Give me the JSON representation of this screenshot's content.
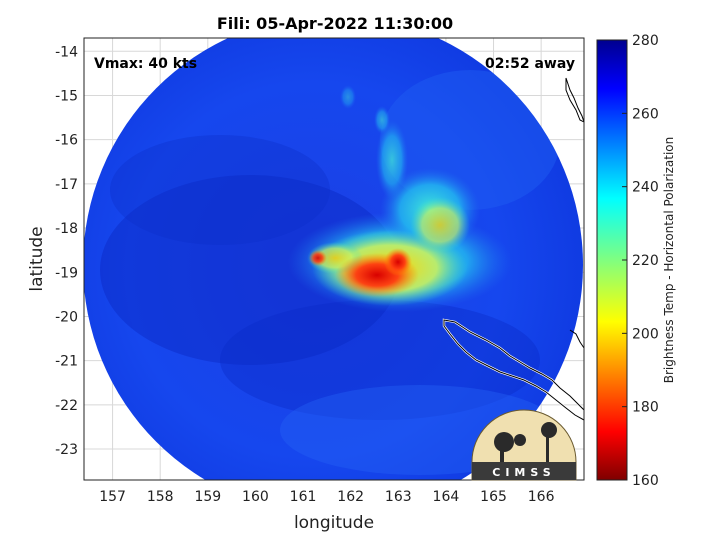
{
  "title": "Fili: 05-Apr-2022 11:30:00",
  "vmax_label": "Vmax: 40 kts",
  "away_label": "02:52 away",
  "xlabel": "longitude",
  "ylabel": "latitude",
  "x_ticks": [
    "157",
    "158",
    "159",
    "160",
    "161",
    "162",
    "163",
    "164",
    "165",
    "166"
  ],
  "y_ticks": [
    "-14",
    "-15",
    "-16",
    "-17",
    "-18",
    "-19",
    "-20",
    "-21",
    "-22",
    "-23"
  ],
  "colorbar": {
    "label": "Brightness Temp - Horizontal Polarization",
    "ticks": [
      "280",
      "260",
      "240",
      "220",
      "200",
      "180",
      "160"
    ],
    "range": [
      160,
      280
    ],
    "colormap": "jet"
  },
  "logo": {
    "text": "CIMSS"
  },
  "map": {
    "xlim": [
      156.4,
      166.9
    ],
    "ylim": [
      -23.7,
      -13.7
    ],
    "grid": true,
    "storm_center_approx": {
      "lon": 162.7,
      "lat": -19.0
    }
  },
  "colors": {
    "background": "#0a2fd6",
    "cold_core": "#e8180a"
  }
}
